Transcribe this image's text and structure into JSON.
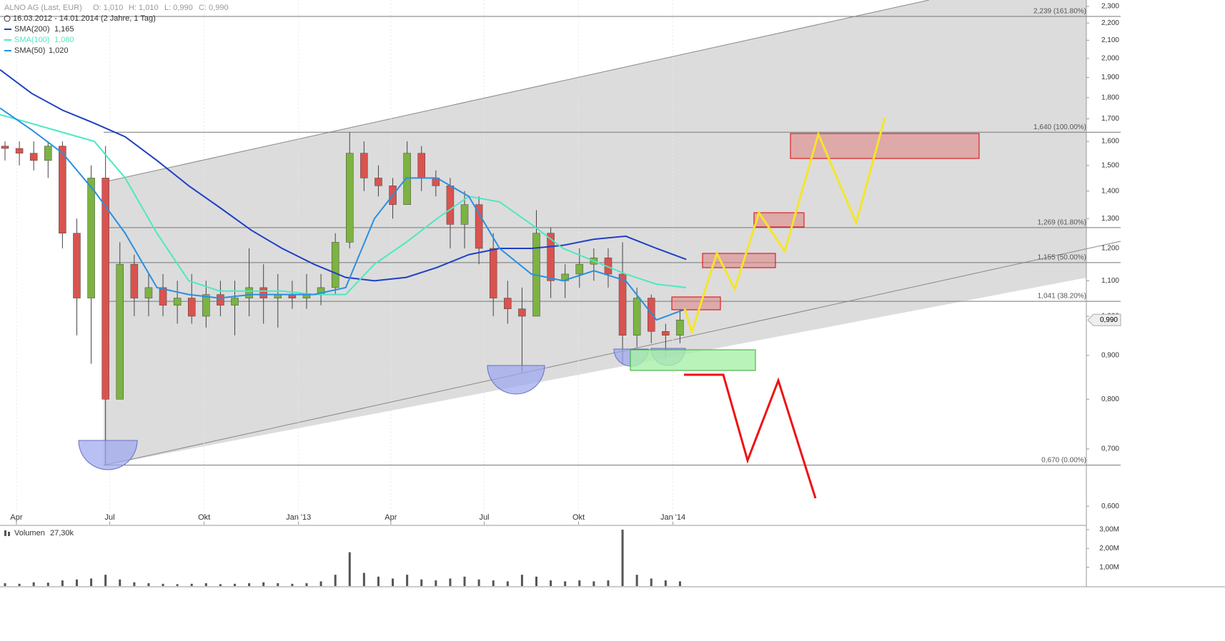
{
  "chart_data": [
    {
      "type": "candlestick",
      "title": "ALNO AG (Last, EUR)",
      "ohlc_text": [
        "O: 1,010",
        "H: 1,010",
        "L: 0,990",
        "C: 0,990"
      ],
      "subtitle": "16.03.2012 - 14.01.2014 (2 Jahre, 1 Tag)",
      "log_scale": true,
      "up_color": "#7cb342",
      "down_color": "#d9534f",
      "x": [
        "2012-03-16",
        "2012-03-30",
        "2012-04-13",
        "2012-04-27",
        "2012-05-11",
        "2012-05-25",
        "2012-06-08",
        "2012-06-22",
        "2012-07-06",
        "2012-07-20",
        "2012-08-03",
        "2012-08-17",
        "2012-08-31",
        "2012-09-14",
        "2012-09-28",
        "2012-10-12",
        "2012-10-26",
        "2012-11-09",
        "2012-11-23",
        "2012-12-07",
        "2012-12-21",
        "2013-01-04",
        "2013-01-18",
        "2013-02-01",
        "2013-02-15",
        "2013-03-01",
        "2013-03-15",
        "2013-03-29",
        "2013-04-12",
        "2013-04-26",
        "2013-05-10",
        "2013-05-24",
        "2013-06-07",
        "2013-06-21",
        "2013-07-05",
        "2013-07-19",
        "2013-08-02",
        "2013-08-16",
        "2013-08-30",
        "2013-09-13",
        "2013-09-27",
        "2013-10-11",
        "2013-10-25",
        "2013-11-08",
        "2013-11-22",
        "2013-12-06",
        "2013-12-20",
        "2014-01-03"
      ],
      "open": [
        1.58,
        1.57,
        1.55,
        1.52,
        1.58,
        1.25,
        1.05,
        1.45,
        0.8,
        1.15,
        1.05,
        1.08,
        1.03,
        1.05,
        1.0,
        1.06,
        1.03,
        1.05,
        1.08,
        1.05,
        1.06,
        1.05,
        1.06,
        1.08,
        1.22,
        1.55,
        1.45,
        1.42,
        1.35,
        1.55,
        1.45,
        1.42,
        1.28,
        1.35,
        1.2,
        1.05,
        1.02,
        1.0,
        1.25,
        1.1,
        1.12,
        1.15,
        1.17,
        1.12,
        0.95,
        1.05,
        0.96,
        0.95
      ],
      "high": [
        1.6,
        1.6,
        1.6,
        1.6,
        1.6,
        1.3,
        1.5,
        1.58,
        1.22,
        1.18,
        1.12,
        1.12,
        1.1,
        1.12,
        1.1,
        1.1,
        1.1,
        1.2,
        1.15,
        1.12,
        1.1,
        1.12,
        1.12,
        1.25,
        1.64,
        1.6,
        1.5,
        1.45,
        1.6,
        1.58,
        1.48,
        1.45,
        1.4,
        1.38,
        1.25,
        1.1,
        1.08,
        1.33,
        1.27,
        1.15,
        1.2,
        1.2,
        1.2,
        1.22,
        1.08,
        1.06,
        0.98,
        1.02
      ],
      "low": [
        1.52,
        1.5,
        1.48,
        1.45,
        1.2,
        0.95,
        0.88,
        0.67,
        0.8,
        1.0,
        1.0,
        1.0,
        0.98,
        0.98,
        0.97,
        1.0,
        0.95,
        1.0,
        0.98,
        0.97,
        1.02,
        1.02,
        1.03,
        1.06,
        1.2,
        1.4,
        1.38,
        1.3,
        1.35,
        1.4,
        1.38,
        1.2,
        1.2,
        1.15,
        1.0,
        0.98,
        0.86,
        1.0,
        1.05,
        1.05,
        1.08,
        1.1,
        1.08,
        0.88,
        0.92,
        0.93,
        0.89,
        0.93
      ],
      "close": [
        1.57,
        1.55,
        1.52,
        1.58,
        1.25,
        1.05,
        1.45,
        0.8,
        1.15,
        1.05,
        1.08,
        1.03,
        1.05,
        1.0,
        1.06,
        1.03,
        1.05,
        1.08,
        1.05,
        1.06,
        1.05,
        1.06,
        1.08,
        1.22,
        1.55,
        1.45,
        1.42,
        1.35,
        1.55,
        1.45,
        1.42,
        1.28,
        1.35,
        1.2,
        1.05,
        1.02,
        1.0,
        1.25,
        1.1,
        1.12,
        1.15,
        1.17,
        1.12,
        0.95,
        1.05,
        0.96,
        0.95,
        0.99
      ],
      "last_price": {
        "value": 0.99,
        "label": "0,990"
      },
      "series": [
        {
          "name": "SMA(200)",
          "color": "#1f3fc4",
          "last_label": "1,165",
          "x": [
            "2012-03-16",
            "2012-04-16",
            "2012-05-16",
            "2012-06-16",
            "2012-07-16",
            "2012-08-16",
            "2012-09-16",
            "2012-10-16",
            "2012-11-16",
            "2012-12-16",
            "2013-01-16",
            "2013-02-16",
            "2013-03-16",
            "2013-04-16",
            "2013-05-16",
            "2013-06-16",
            "2013-07-16",
            "2013-08-16",
            "2013-09-16",
            "2013-10-16",
            "2013-11-16",
            "2013-12-16",
            "2014-01-14"
          ],
          "values": [
            1.94,
            1.82,
            1.74,
            1.68,
            1.62,
            1.52,
            1.42,
            1.34,
            1.26,
            1.2,
            1.15,
            1.11,
            1.1,
            1.11,
            1.14,
            1.18,
            1.2,
            1.2,
            1.21,
            1.23,
            1.24,
            1.2,
            1.165
          ]
        },
        {
          "name": "SMA(100)",
          "color": "#4de8c0",
          "last_label": "1,080",
          "x": [
            "2012-03-16",
            "2012-06-16",
            "2012-07-16",
            "2012-08-16",
            "2012-09-16",
            "2012-10-16",
            "2012-11-16",
            "2012-12-16",
            "2013-01-16",
            "2013-02-16",
            "2013-03-16",
            "2013-04-16",
            "2013-05-16",
            "2013-06-16",
            "2013-07-16",
            "2013-08-16",
            "2013-09-16",
            "2013-10-16",
            "2013-11-16",
            "2013-12-16",
            "2014-01-14"
          ],
          "values": [
            1.72,
            1.6,
            1.45,
            1.25,
            1.1,
            1.07,
            1.07,
            1.07,
            1.06,
            1.06,
            1.15,
            1.22,
            1.3,
            1.38,
            1.36,
            1.28,
            1.2,
            1.16,
            1.12,
            1.09,
            1.08
          ]
        },
        {
          "name": "SMA(50)",
          "color": "#2a8fe0",
          "last_label": "1,020",
          "x": [
            "2012-03-16",
            "2012-04-16",
            "2012-05-16",
            "2012-06-16",
            "2012-07-16",
            "2012-08-16",
            "2012-09-16",
            "2012-10-16",
            "2012-11-16",
            "2012-12-16",
            "2013-01-16",
            "2013-02-16",
            "2013-03-16",
            "2013-04-16",
            "2013-05-16",
            "2013-06-16",
            "2013-07-16",
            "2013-08-16",
            "2013-09-16",
            "2013-10-16",
            "2013-11-16",
            "2013-12-16",
            "2014-01-14"
          ],
          "values": [
            1.75,
            1.65,
            1.55,
            1.4,
            1.25,
            1.08,
            1.06,
            1.05,
            1.06,
            1.06,
            1.06,
            1.08,
            1.3,
            1.45,
            1.45,
            1.38,
            1.2,
            1.12,
            1.1,
            1.13,
            1.1,
            0.99,
            1.02
          ]
        }
      ],
      "fib_levels": [
        {
          "value": 2.239,
          "label": "2,239 (161.80%)"
        },
        {
          "value": 1.64,
          "label": "1,640 (100.00%)"
        },
        {
          "value": 1.269,
          "label": "1,269 (61.80%)"
        },
        {
          "value": 1.155,
          "label": "1,155 (50.00%)"
        },
        {
          "value": 1.041,
          "label": "1,041 (38.20%)"
        },
        {
          "value": 0.67,
          "label": "0,670 (0.00%)"
        }
      ],
      "xlim": [
        "2012-03-16",
        "2015-02-08"
      ],
      "xticks": [
        {
          "value": "2012-04-01",
          "label": "Apr"
        },
        {
          "value": "2012-07-01",
          "label": "Jul"
        },
        {
          "value": "2012-10-01",
          "label": "Okt"
        },
        {
          "value": "2013-01-01",
          "label": "Jan '13"
        },
        {
          "value": "2013-04-01",
          "label": "Apr"
        },
        {
          "value": "2013-07-01",
          "label": "Jul"
        },
        {
          "value": "2013-10-01",
          "label": "Okt"
        },
        {
          "value": "2014-01-01",
          "label": "Jan '14"
        }
      ],
      "ylim": [
        0.571,
        2.34
      ],
      "yticks": [
        {
          "value": 0.6,
          "label": "0,600"
        },
        {
          "value": 0.7,
          "label": "0,700"
        },
        {
          "value": 0.8,
          "label": "0,800"
        },
        {
          "value": 0.9,
          "label": "0,900"
        },
        {
          "value": 1.0,
          "label": "1,000"
        },
        {
          "value": 1.1,
          "label": "1,100"
        },
        {
          "value": 1.2,
          "label": "1,200"
        },
        {
          "value": 1.3,
          "label": "1,300"
        },
        {
          "value": 1.4,
          "label": "1,400"
        },
        {
          "value": 1.5,
          "label": "1,500"
        },
        {
          "value": 1.6,
          "label": "1,600"
        },
        {
          "value": 1.7,
          "label": "1,700"
        },
        {
          "value": 1.8,
          "label": "1,800"
        },
        {
          "value": 1.9,
          "label": "1,900"
        },
        {
          "value": 2.0,
          "label": "2,000"
        },
        {
          "value": 2.1,
          "label": "2,100"
        },
        {
          "value": 2.2,
          "label": "2,200"
        },
        {
          "value": 2.3,
          "label": "2,300"
        }
      ]
    },
    {
      "type": "bar",
      "title": "Volumen",
      "subtitle": "27,30k",
      "color": "#555555",
      "x": [
        "2012-03-16",
        "2012-03-30",
        "2012-04-13",
        "2012-04-27",
        "2012-05-11",
        "2012-05-25",
        "2012-06-08",
        "2012-06-22",
        "2012-07-06",
        "2012-07-20",
        "2012-08-03",
        "2012-08-17",
        "2012-08-31",
        "2012-09-14",
        "2012-09-28",
        "2012-10-12",
        "2012-10-26",
        "2012-11-09",
        "2012-11-23",
        "2012-12-07",
        "2012-12-21",
        "2013-01-04",
        "2013-01-18",
        "2013-02-01",
        "2013-02-15",
        "2013-03-01",
        "2013-03-15",
        "2013-03-29",
        "2013-04-12",
        "2013-04-26",
        "2013-05-10",
        "2013-05-24",
        "2013-06-07",
        "2013-06-21",
        "2013-07-05",
        "2013-07-19",
        "2013-08-02",
        "2013-08-16",
        "2013-08-30",
        "2013-09-13",
        "2013-09-27",
        "2013-10-11",
        "2013-10-25",
        "2013-11-08",
        "2013-11-22",
        "2013-12-06",
        "2013-12-20",
        "2014-01-03"
      ],
      "values": [
        150000,
        120000,
        200000,
        180000,
        300000,
        350000,
        400000,
        600000,
        350000,
        200000,
        150000,
        120000,
        100000,
        120000,
        150000,
        100000,
        120000,
        150000,
        200000,
        150000,
        120000,
        150000,
        250000,
        600000,
        1800000,
        700000,
        500000,
        400000,
        600000,
        350000,
        300000,
        400000,
        500000,
        350000,
        300000,
        250000,
        600000,
        500000,
        300000,
        250000,
        300000,
        250000,
        300000,
        3000000,
        600000,
        400000,
        300000,
        250000
      ],
      "ylim": [
        0,
        3190000
      ],
      "yticks": [
        {
          "value": 1000000,
          "label": "1,00M"
        },
        {
          "value": 2000000,
          "label": "2,00M"
        },
        {
          "value": 3000000,
          "label": "3,00M"
        }
      ]
    }
  ]
}
